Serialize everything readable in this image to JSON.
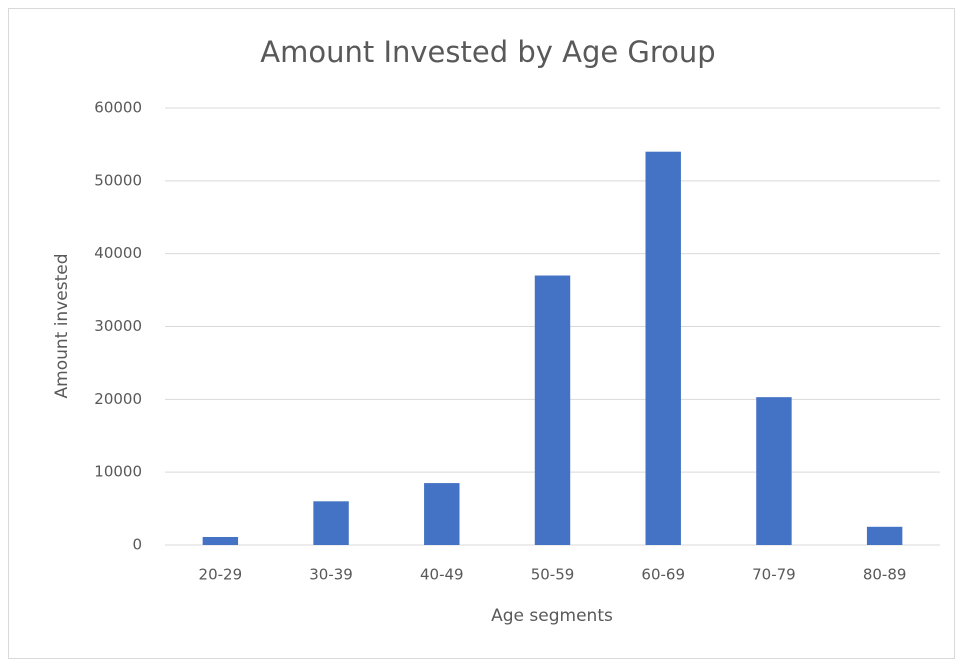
{
  "chart_data": {
    "type": "bar",
    "title": "Amount Invested by Age Group",
    "x_label": "Age segments",
    "y_label": "Amount invested",
    "categories": [
      "20-29",
      "30-39",
      "40-49",
      "50-59",
      "60-69",
      "70-79",
      "80-89"
    ],
    "values": [
      1100,
      6000,
      8500,
      37000,
      54000,
      20300,
      2500
    ],
    "color": "#4472c4",
    "ylim": [
      0,
      60000
    ],
    "yticks": [
      0,
      10000,
      20000,
      30000,
      40000,
      50000,
      60000
    ],
    "grid": true
  }
}
